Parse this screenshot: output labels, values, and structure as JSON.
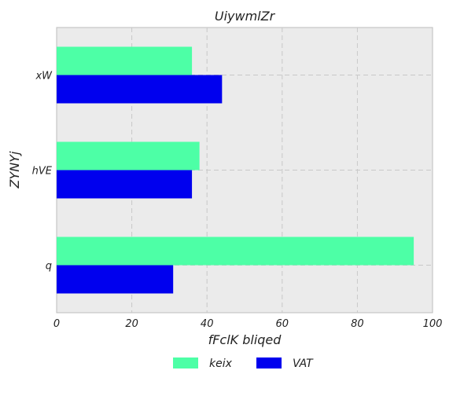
{
  "chart_data": {
    "type": "bar",
    "orientation": "horizontal",
    "title": "UiywmlZr",
    "xlabel": "fFclK bliqed",
    "ylabel": "ZYNYj",
    "categories": [
      "q",
      "hVE",
      "xW"
    ],
    "series": [
      {
        "name": "keix",
        "values": [
          95,
          38,
          36
        ],
        "color": "#4dffa6"
      },
      {
        "name": "VAT",
        "values": [
          31,
          36,
          44
        ],
        "color": "#0000ee"
      }
    ],
    "xlim": [
      0,
      100
    ],
    "xticks": [
      0,
      20,
      40,
      60,
      80,
      100
    ],
    "grid": true,
    "legend_position": "bottom-center"
  }
}
